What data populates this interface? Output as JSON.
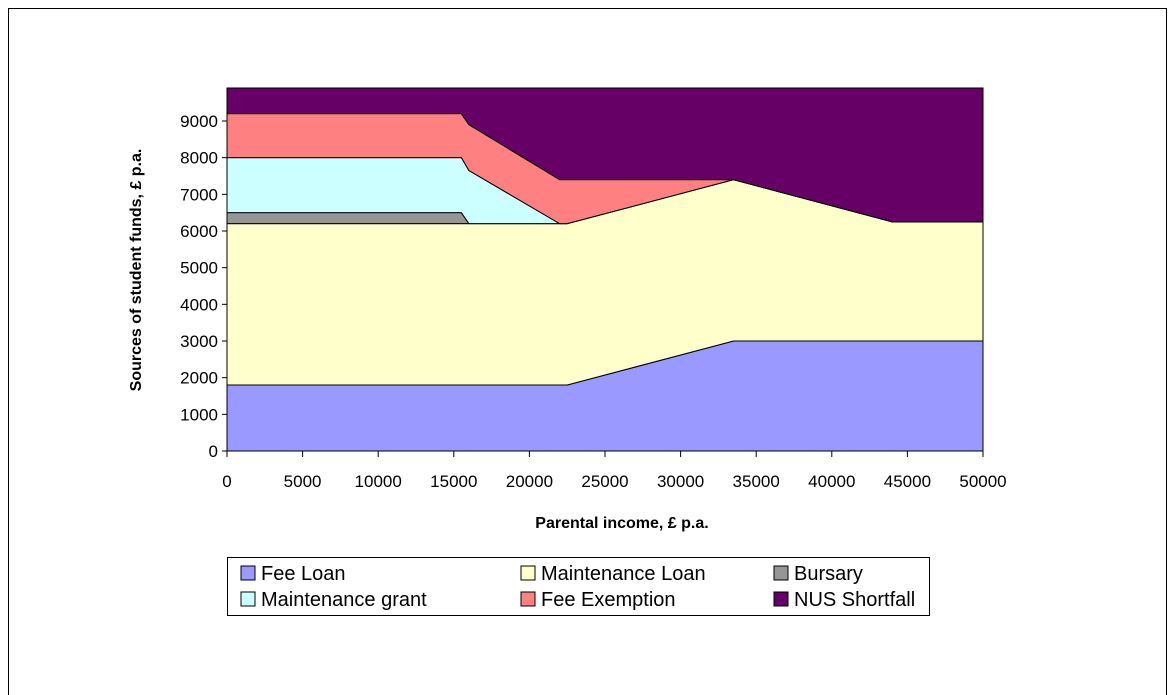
{
  "chart_data": {
    "type": "stacked_area",
    "xlabel": "Parental income, £ p.a.",
    "ylabel": "Sources of student funds, £ p.a.",
    "x": [
      0,
      15500,
      16000,
      22000,
      22500,
      33500,
      44000,
      50000
    ],
    "series": [
      {
        "name": "Fee Loan",
        "color": "#9999ff",
        "values": [
          1800,
          1800,
          1800,
          1800,
          1800,
          3000,
          3000,
          3000
        ]
      },
      {
        "name": "Maintenance Loan",
        "color": "#ffffcc",
        "values": [
          4400,
          4400,
          4400,
          4400,
          4400,
          4400,
          3250,
          3250
        ]
      },
      {
        "name": "Bursary",
        "color": "#969696",
        "values": [
          300,
          300,
          0,
          0,
          0,
          0,
          0,
          0
        ]
      },
      {
        "name": "Maintenance grant",
        "color": "#ccffff",
        "values": [
          1500,
          1500,
          1450,
          0,
          0,
          0,
          0,
          0
        ]
      },
      {
        "name": "Fee Exemption",
        "color": "#ff8080",
        "values": [
          1200,
          1200,
          1250,
          1200,
          1200,
          0,
          0,
          0
        ]
      },
      {
        "name": "NUS Shortfall",
        "color": "#660066",
        "values": [
          700,
          700,
          1000,
          2500,
          2500,
          2500,
          3650,
          3650
        ]
      }
    ],
    "xlim": [
      0,
      50000
    ],
    "xticks": [
      0,
      5000,
      10000,
      15000,
      20000,
      25000,
      30000,
      35000,
      40000,
      45000,
      50000
    ],
    "ylim": [
      0,
      9900
    ],
    "yticks": [
      0,
      1000,
      2000,
      3000,
      4000,
      5000,
      6000,
      7000,
      8000,
      9000
    ],
    "legend": "bottom"
  }
}
